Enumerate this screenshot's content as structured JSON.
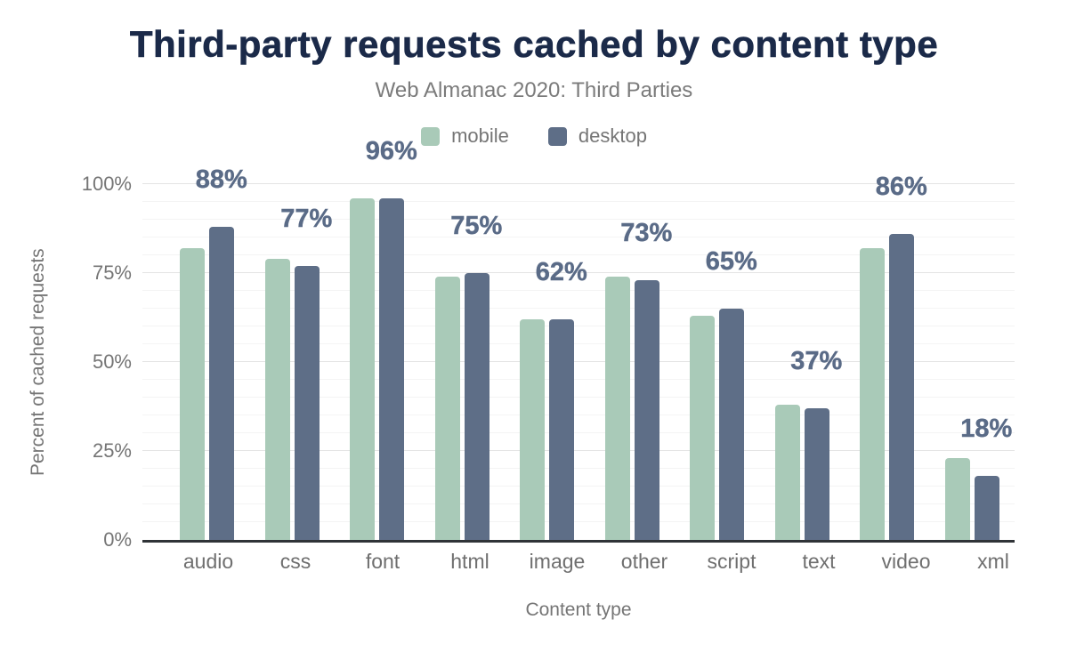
{
  "chart_data": {
    "type": "bar",
    "title": "Third-party requests cached by content type",
    "subtitle": "Web Almanac 2020: Third Parties",
    "categories": [
      "audio",
      "css",
      "font",
      "html",
      "image",
      "other",
      "script",
      "text",
      "video",
      "xml"
    ],
    "series": [
      {
        "name": "mobile",
        "color": "#a9cab8",
        "values": [
          82,
          79,
          96,
          74,
          62,
          74,
          63,
          38,
          82,
          23
        ]
      },
      {
        "name": "desktop",
        "color": "#5e6e87",
        "values": [
          88,
          77,
          96,
          75,
          62,
          73,
          65,
          37,
          86,
          18
        ]
      }
    ],
    "bar_labels": [
      "88%",
      "77%",
      "96%",
      "75%",
      "62%",
      "73%",
      "65%",
      "37%",
      "86%",
      "18%"
    ],
    "bar_labels_series": "desktop",
    "xlabel": "Content type",
    "ylabel": "Percent of cached requests",
    "ylim": [
      0,
      100
    ],
    "yticks": [
      "0%",
      "25%",
      "50%",
      "75%",
      "100%"
    ],
    "grid": {
      "major_step_pct": 25,
      "minor_step_pct": 5,
      "grid_on": true
    },
    "legend_position": "top",
    "value_label_color": "#5a6b87",
    "title_color": "#1b2a49",
    "axis_text_color": "#757575"
  }
}
